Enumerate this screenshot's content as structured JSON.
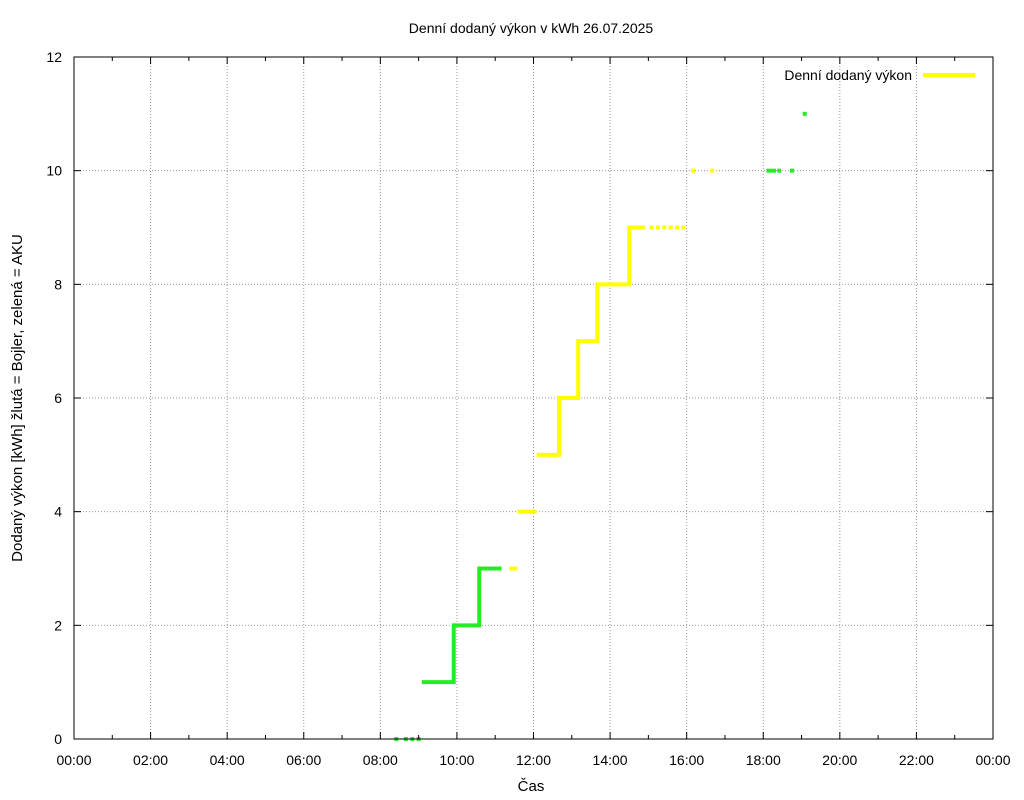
{
  "chart_data": {
    "type": "line",
    "title": "Denní dodaný výkon v kWh 26.07.2025",
    "xlabel": "Čas",
    "ylabel": "Dodaný výkon [kWh]  žlutá = Bojler, zelená = AKU",
    "x_ticks": [
      "00:00",
      "02:00",
      "04:00",
      "06:00",
      "08:00",
      "10:00",
      "12:00",
      "14:00",
      "16:00",
      "18:00",
      "20:00",
      "22:00",
      "00:00"
    ],
    "y_ticks": [
      "0",
      "2",
      "4",
      "6",
      "8",
      "10",
      "12"
    ],
    "xlim_hours": [
      0,
      24
    ],
    "ylim": [
      0,
      12
    ],
    "grid": true,
    "legend": {
      "position": "top-right",
      "entries": [
        {
          "label": "Denní dodaný výkon",
          "color": "#ffff00"
        }
      ]
    },
    "series": [
      {
        "color": "#ffff00",
        "x": [
          "10:50",
          "11:20",
          "11:35",
          "11:45",
          "12:00",
          "12:05",
          "12:15",
          "12:20",
          "12:35",
          "12:40",
          "12:45",
          "12:55",
          "13:00",
          "13:10",
          "13:15",
          "13:25",
          "13:45",
          "13:55",
          "14:05",
          "14:25",
          "14:35",
          "14:50",
          "15:05",
          "15:20",
          "15:35",
          "15:50",
          "16:10",
          "16:40"
        ],
        "y": [
          3,
          3,
          3,
          4,
          4,
          4,
          5,
          5,
          5,
          6,
          6,
          6,
          7,
          7,
          8,
          8,
          8,
          8,
          9,
          9,
          9,
          9,
          9,
          9,
          9,
          9,
          10,
          10
        ],
        "segments": [
          {
            "x": [
              "11:25",
              "11:35"
            ],
            "y": [
              3,
              3
            ]
          },
          {
            "x": [
              "11:35",
              "12:05"
            ],
            "y": [
              4,
              4
            ]
          },
          {
            "x": [
              "12:05",
              "12:40"
            ],
            "y": [
              5,
              5
            ]
          },
          {
            "x": [
              "12:40",
              "13:10"
            ],
            "y": [
              6,
              6
            ]
          },
          {
            "x": [
              "13:10",
              "13:40"
            ],
            "y": [
              7,
              7
            ]
          },
          {
            "x": [
              "13:40",
              "14:30"
            ],
            "y": [
              8,
              8
            ]
          },
          {
            "x": [
              "14:30",
              "14:55"
            ],
            "y": [
              9,
              9
            ]
          }
        ],
        "verticals": [
          {
            "x": "12:40",
            "y": [
              5,
              6
            ]
          },
          {
            "x": "13:10",
            "y": [
              6,
              7
            ]
          },
          {
            "x": "13:40",
            "y": [
              7,
              8
            ]
          },
          {
            "x": "14:30",
            "y": [
              8,
              9
            ]
          }
        ],
        "points": [
          {
            "x": "11:25",
            "y": 3
          },
          {
            "x": "15:05",
            "y": 9
          },
          {
            "x": "15:15",
            "y": 9
          },
          {
            "x": "15:25",
            "y": 9
          },
          {
            "x": "15:35",
            "y": 9
          },
          {
            "x": "15:45",
            "y": 9
          },
          {
            "x": "15:55",
            "y": 9
          },
          {
            "x": "16:10",
            "y": 10
          },
          {
            "x": "16:40",
            "y": 10
          }
        ]
      },
      {
        "color": "#22ee22",
        "segments": [
          {
            "x": [
              "09:05",
              "09:55"
            ],
            "y": [
              1,
              1
            ]
          },
          {
            "x": [
              "09:55",
              "10:35"
            ],
            "y": [
              2,
              2
            ]
          },
          {
            "x": [
              "10:35",
              "11:10"
            ],
            "y": [
              3,
              3
            ]
          },
          {
            "x": [
              "18:05",
              "18:20"
            ],
            "y": [
              10,
              10
            ]
          }
        ],
        "verticals": [
          {
            "x": "09:55",
            "y": [
              1,
              2
            ]
          },
          {
            "x": "10:35",
            "y": [
              2,
              3
            ]
          }
        ],
        "points": [
          {
            "x": "08:25",
            "y": 0
          },
          {
            "x": "08:40",
            "y": 0
          },
          {
            "x": "08:50",
            "y": 0
          },
          {
            "x": "09:00",
            "y": 0
          },
          {
            "x": "18:25",
            "y": 10
          },
          {
            "x": "18:45",
            "y": 10
          },
          {
            "x": "19:05",
            "y": 11
          }
        ]
      }
    ]
  }
}
